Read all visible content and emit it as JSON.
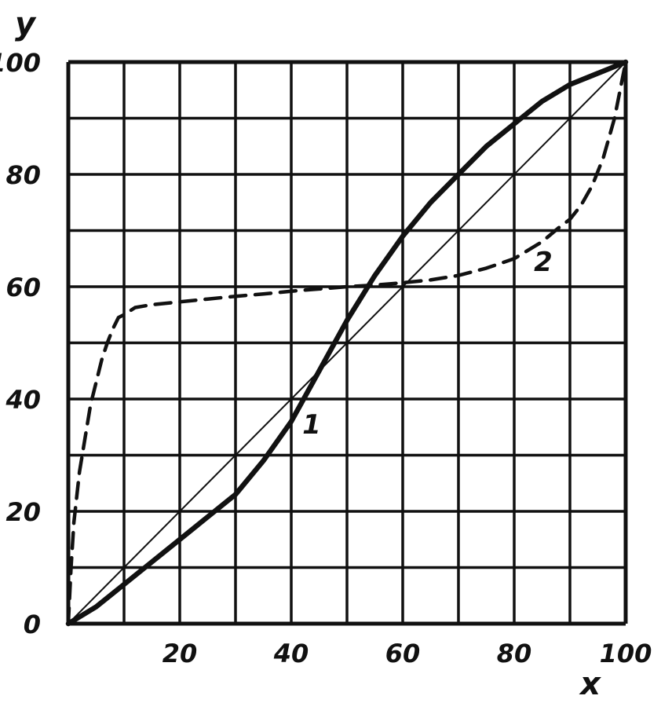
{
  "chart_data": {
    "type": "line",
    "title": "",
    "xlabel": "x",
    "ylabel": "y",
    "xlim": [
      0,
      100
    ],
    "ylim": [
      0,
      100
    ],
    "grid": true,
    "x_ticks": [
      20,
      40,
      60,
      80,
      100
    ],
    "y_ticks": [
      0,
      20,
      40,
      60,
      80,
      100
    ],
    "colors": {
      "line": "#111111",
      "grid": "#111111",
      "background": "#ffffff"
    },
    "series": [
      {
        "label": "1",
        "style": "solid-thick",
        "points": [
          [
            0,
            0
          ],
          [
            5,
            3
          ],
          [
            10,
            7
          ],
          [
            15,
            11
          ],
          [
            20,
            15
          ],
          [
            25,
            19
          ],
          [
            30,
            23
          ],
          [
            35,
            29
          ],
          [
            40,
            36
          ],
          [
            45,
            45
          ],
          [
            50,
            54
          ],
          [
            55,
            62
          ],
          [
            60,
            69
          ],
          [
            65,
            75
          ],
          [
            70,
            80
          ],
          [
            75,
            85
          ],
          [
            80,
            89
          ],
          [
            85,
            93
          ],
          [
            90,
            96
          ],
          [
            95,
            98
          ],
          [
            100,
            100
          ]
        ]
      },
      {
        "label": "2",
        "style": "dashed",
        "points": [
          [
            0,
            0
          ],
          [
            0.5,
            10
          ],
          [
            1,
            18
          ],
          [
            2,
            27
          ],
          [
            3,
            33
          ],
          [
            4,
            39
          ],
          [
            5,
            43
          ],
          [
            6,
            47
          ],
          [
            7,
            50
          ],
          [
            8,
            52.5
          ],
          [
            9,
            54.5
          ],
          [
            10,
            55
          ],
          [
            12,
            56.3
          ],
          [
            15,
            56.8
          ],
          [
            20,
            57.3
          ],
          [
            25,
            57.8
          ],
          [
            30,
            58.3
          ],
          [
            35,
            58.7
          ],
          [
            40,
            59.2
          ],
          [
            45,
            59.6
          ],
          [
            50,
            60
          ],
          [
            55,
            60.3
          ],
          [
            60,
            60.7
          ],
          [
            65,
            61.2
          ],
          [
            70,
            62
          ],
          [
            75,
            63.3
          ],
          [
            80,
            65
          ],
          [
            85,
            68
          ],
          [
            88,
            70.5
          ],
          [
            90,
            72
          ],
          [
            92,
            74.5
          ],
          [
            94,
            78
          ],
          [
            96,
            83
          ],
          [
            98,
            90
          ],
          [
            100,
            100
          ]
        ]
      },
      {
        "label": "",
        "style": "solid-thin",
        "points": [
          [
            0,
            0
          ],
          [
            100,
            100
          ]
        ]
      }
    ]
  }
}
